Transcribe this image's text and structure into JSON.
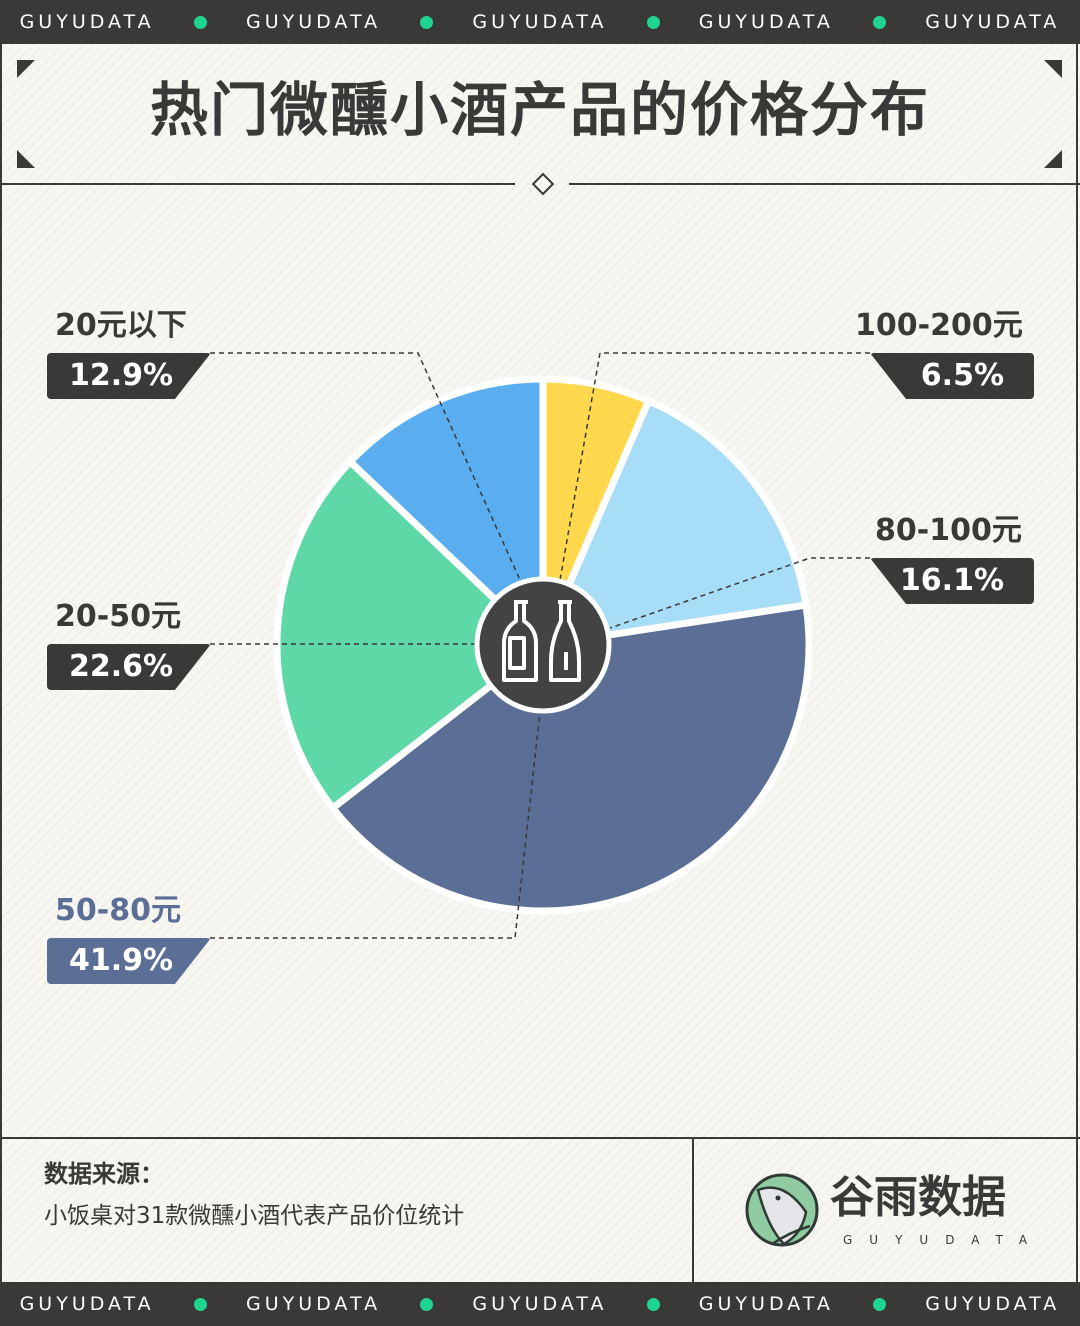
{
  "brand_band": "GUYUDATA",
  "title": "热门微醺小酒产品的价格分布",
  "chart_data": {
    "type": "pie",
    "title": "热门微醺小酒产品的价格分布",
    "center_icon": "wine-bottles-icon",
    "slices": [
      {
        "label": "100-200元",
        "value": 6.5,
        "display": "6.5%",
        "color": "#FFD84D",
        "side": "right"
      },
      {
        "label": "80-100元",
        "value": 16.1,
        "display": "16.1%",
        "color": "#A8DDF7",
        "side": "right"
      },
      {
        "label": "50-80元",
        "value": 41.9,
        "display": "41.9%",
        "color": "#5A6E96",
        "side": "left"
      },
      {
        "label": "20-50元",
        "value": 22.6,
        "display": "22.6%",
        "color": "#5FD8A8",
        "side": "left"
      },
      {
        "label": "20元以下",
        "value": 12.9,
        "display": "12.9%",
        "color": "#5AAEF0",
        "side": "left"
      }
    ]
  },
  "footer": {
    "source_title": "数据来源：",
    "source_text": "小饭桌对31款微醺小酒代表产品价位统计",
    "logo_cn": "谷雨数据",
    "logo_en": "GUYUDATA"
  },
  "colors": {
    "dark": "#3B3838",
    "accent": "#1ED48E",
    "highlight_label": "#5A6E96"
  }
}
